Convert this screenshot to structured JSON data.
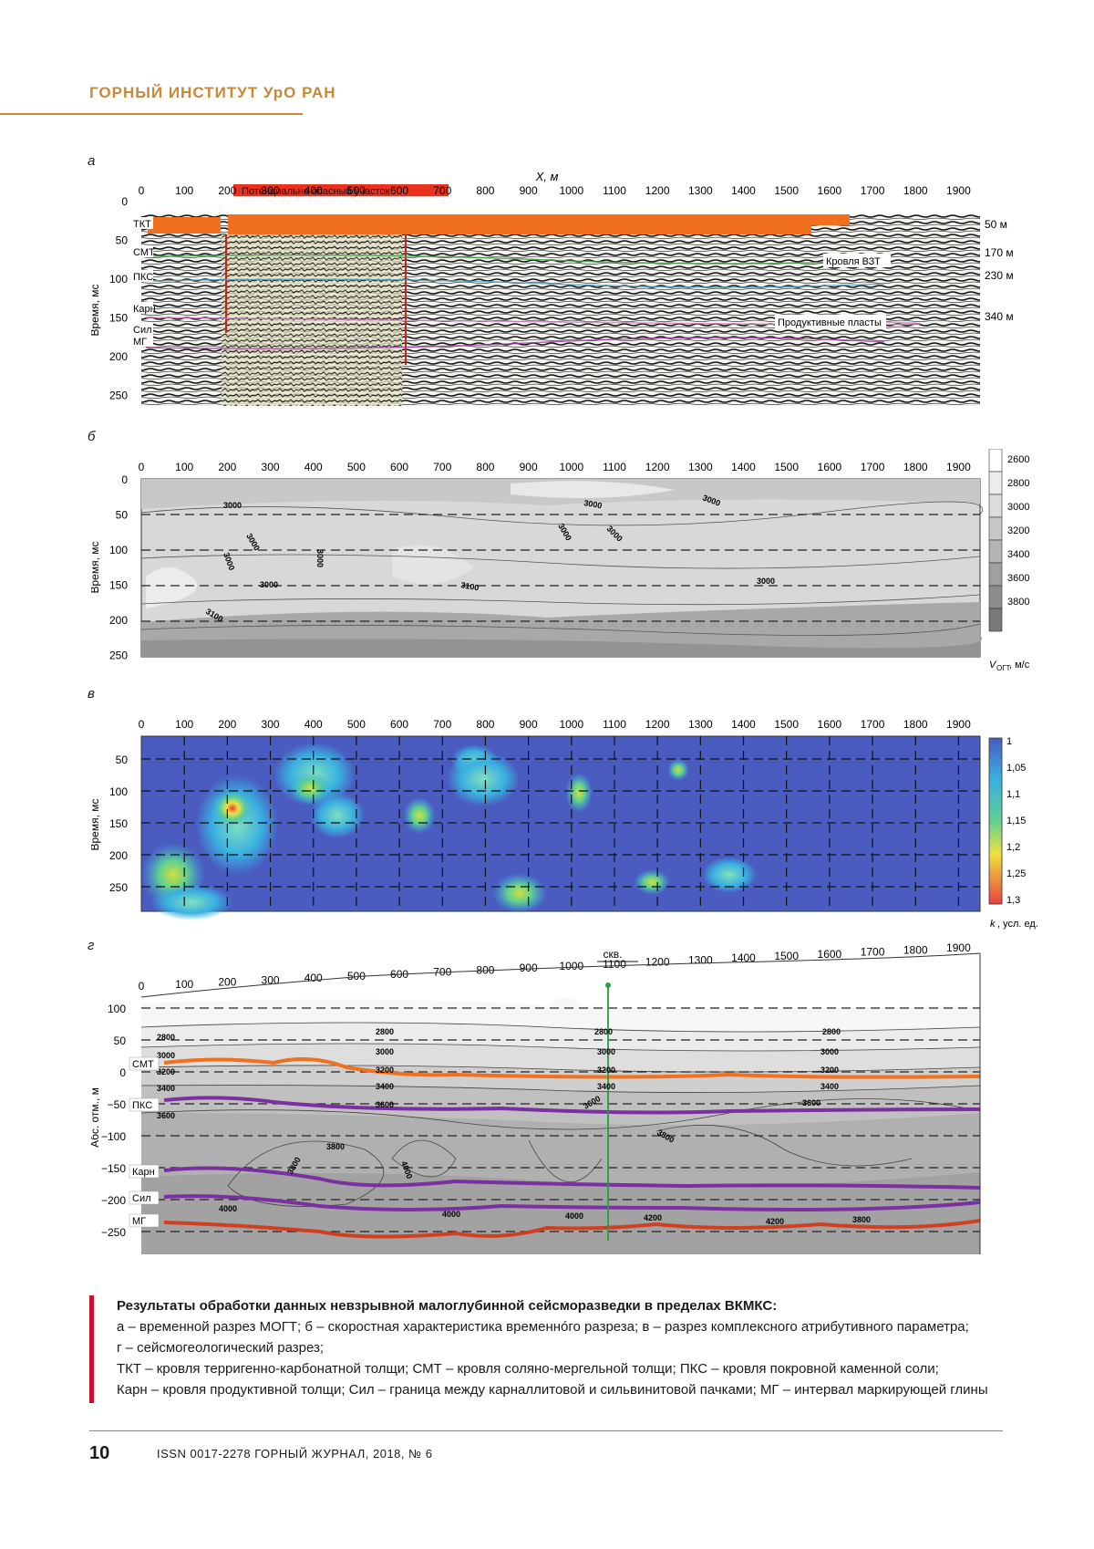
{
  "header": {
    "institute": "ГОРНЫЙ ИНСТИТУТ УрО РАН"
  },
  "x_ticks": [
    "0",
    "100",
    "200",
    "300",
    "400",
    "500",
    "600",
    "700",
    "800",
    "900",
    "1000",
    "1100",
    "1200",
    "1300",
    "1400",
    "1500",
    "1600",
    "1700",
    "1800",
    "1900"
  ],
  "y_ticks_time": [
    "0",
    "50",
    "100",
    "150",
    "200",
    "250"
  ],
  "panel_a": {
    "letter": "а",
    "x_axis_title": "X, м",
    "y_axis_title": "Время, мс",
    "hazard_label": "Потенциально опасный участок",
    "horizon_labels": [
      "ТКТ",
      "СМТ",
      "ПКС",
      "Карн",
      "Сил",
      "МГ"
    ],
    "depth_labels": [
      "50 м",
      "170 м",
      "230 м",
      "340 м"
    ],
    "annotations": [
      "Кровля ВЗТ",
      "Продуктивные пласты"
    ],
    "colors": {
      "hazard": "#e8321e",
      "bar": "#f07020",
      "section_tint": "#e8e0a0"
    }
  },
  "panel_b": {
    "letter": "б",
    "y_axis_title": "Время, мс",
    "contour_labels": [
      "3000",
      "3000",
      "3000",
      "3000",
      "3000",
      "3000",
      "3000",
      "3000",
      "3000",
      "3100",
      "3100",
      "3000"
    ],
    "colorbar_ticks": [
      "2600",
      "2800",
      "3000",
      "3200",
      "3400",
      "3600",
      "3800"
    ],
    "colorbar_title": "V",
    "colorbar_sub": "ОГТ",
    "colorbar_unit": ", м/с"
  },
  "panel_v": {
    "letter": "в",
    "y_axis_title": "Время, мс",
    "y_ticks": [
      "50",
      "100",
      "150",
      "200",
      "250"
    ],
    "colorbar_ticks": [
      "1",
      "1,05",
      "1,1",
      "1,15",
      "1,2",
      "1,25",
      "1,3"
    ],
    "colorbar_title": "k",
    "colorbar_unit": ", усл. ед.",
    "colors": {
      "low": "#4a5cc0",
      "mid": "#3ab0e0",
      "high": "#e84040"
    }
  },
  "panel_g": {
    "letter": "г",
    "y_axis_title": "Абс. отм., м",
    "y_ticks": [
      "100",
      "50",
      "0",
      "−50",
      "−100",
      "−150",
      "−200",
      "−250"
    ],
    "well_label": "скв.",
    "horizon_labels": [
      "СМТ",
      "ПКС",
      "Карн",
      "Сил",
      "МГ"
    ],
    "contour_labels": [
      "2800",
      "2800",
      "2800",
      "2800",
      "3000",
      "3000",
      "3000",
      "3000",
      "3200",
      "3200",
      "3200",
      "3200",
      "3400",
      "3400",
      "3400",
      "3400",
      "3600",
      "3600",
      "3600",
      "3600",
      "3800",
      "3800",
      "3800",
      "4000",
      "4000",
      "4000",
      "4000",
      "4200",
      "4200",
      "3800"
    ],
    "colors": {
      "smt": "#f07020",
      "pks": "#7a30a0",
      "mg": "#d04020",
      "well": "#20a040"
    }
  },
  "caption": {
    "title": "Результаты обработки данных невзрывной малоглубинной сейсморазведки в пределах ВКМКС:",
    "line1": "а – временной разрез МОГТ; б – скоростная характеристика временнóго разреза; в – разрез комплексного атрибутивного параметра;",
    "line2": "г – сейсмогеологический разрез;",
    "line3": "ТКТ – кровля терригенно-карбонатной толщи; СМТ – кровля соляно-мергельной толщи; ПКС – кровля покровной каменной соли;",
    "line4": "Карн – кровля продуктивной толщи; Сил – граница между карналлитовой и сильвинитовой пачками; МГ – интервал маркирующей глины"
  },
  "footer": {
    "page": "10",
    "journal": "ISSN 0017-2278   ГОРНЫЙ ЖУРНАЛ, 2018, № 6"
  }
}
